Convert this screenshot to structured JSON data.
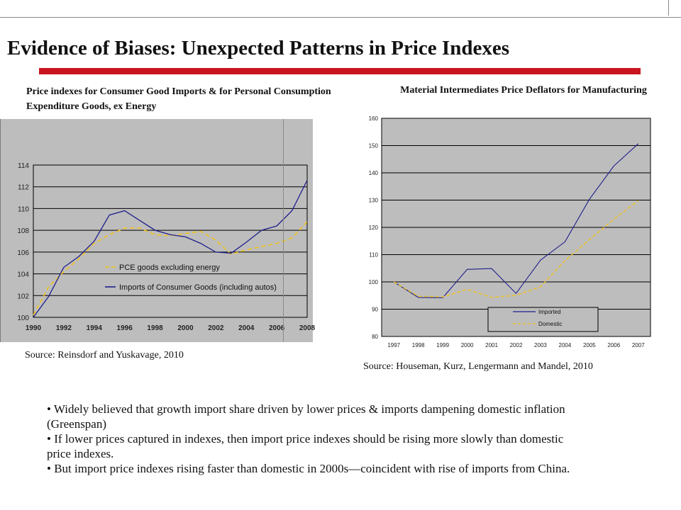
{
  "title": "Evidence of Biases: Unexpected Patterns in Price Indexes",
  "left_chart": {
    "heading": "Price indexes for Consumer Good Imports & for Personal Consumption Expenditure Goods, ex Energy",
    "source": "Source: Reinsdorf and Yuskavage, 2010"
  },
  "right_chart": {
    "heading": "Material Intermediates Price Deflators for Manufacturing",
    "source": "Source:  Houseman, Kurz, Lengermann and Mandel, 2010"
  },
  "bullets": [
    "• Widely believed that growth import share driven by lower prices & imports dampening domestic inflation (Greenspan)",
    "•  If lower prices captured in indexes, then import price indexes should be rising more slowly than domestic price indexes.",
    "• But import price indexes rising faster than domestic in 2000s—coincident with rise of imports from China."
  ],
  "colors": {
    "accent_red": "#c9151e",
    "series_navy": "#1f1f8c",
    "series_yellow": "#f2c31a",
    "plot_gray": "#bdbdbd"
  },
  "chart_data": [
    {
      "type": "line",
      "x": [
        1990,
        1991,
        1992,
        1993,
        1994,
        1995,
        1996,
        1997,
        1998,
        1999,
        2000,
        2001,
        2002,
        2003,
        2004,
        2005,
        2006,
        2007,
        2008
      ],
      "x_tick_labels": [
        "1990",
        "1992",
        "1994",
        "1996",
        "1998",
        "2000",
        "2002",
        "2004",
        "2006",
        "2008"
      ],
      "y_tick_labels": [
        "100",
        "102",
        "104",
        "106",
        "108",
        "110",
        "112",
        "114"
      ],
      "ylim": [
        100,
        114
      ],
      "grid": true,
      "legend_position": "inside-bottom",
      "series": [
        {
          "name": "PCE goods excluding energy",
          "values": [
            100.2,
            102.8,
            104.2,
            105.4,
            106.8,
            107.6,
            108.2,
            108.2,
            107.6,
            107.5,
            107.7,
            107.9,
            107.1,
            105.8,
            106.2,
            106.5,
            106.8,
            107.3,
            108.8
          ]
        },
        {
          "name": "Imports of Consumer Goods (including autos)",
          "values": [
            100.0,
            101.9,
            104.6,
            105.6,
            107.0,
            109.4,
            109.8,
            108.9,
            108.0,
            107.6,
            107.4,
            106.8,
            106.0,
            105.9,
            106.9,
            108.0,
            108.4,
            109.8,
            112.6
          ]
        }
      ]
    },
    {
      "type": "line",
      "x": [
        1997,
        1998,
        1999,
        2000,
        2001,
        2002,
        2003,
        2004,
        2005,
        2006,
        2007
      ],
      "y_tick_labels": [
        "80",
        "90",
        "100",
        "110",
        "120",
        "130",
        "140",
        "150",
        "160"
      ],
      "ylim": [
        80,
        160
      ],
      "grid": true,
      "legend_position": "bottom-right",
      "series": [
        {
          "name": "Imported",
          "values": [
            100,
            94.3,
            94.2,
            104.6,
            104.9,
            95.8,
            108,
            114.7,
            130.3,
            142.5,
            150.7
          ]
        },
        {
          "name": "Domestic",
          "values": [
            100,
            94.7,
            94.5,
            97.3,
            94.3,
            95.1,
            98.2,
            107.8,
            115.5,
            123,
            129.8
          ]
        }
      ]
    }
  ]
}
